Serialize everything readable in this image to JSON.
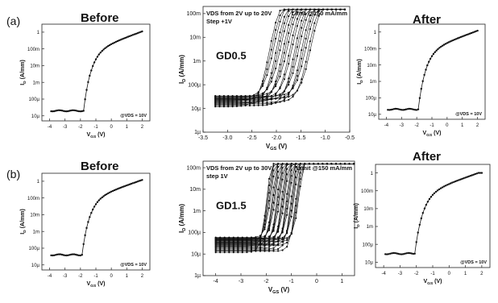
{
  "rows": [
    {
      "tag": "(a)",
      "before": "Before",
      "after": "After"
    },
    {
      "tag": "(b)",
      "before": "Before",
      "after": "After"
    }
  ],
  "chart_data": [
    {
      "id": "a-before",
      "type": "scatter",
      "yscale": "log",
      "xlim": [
        -4.5,
        2.5
      ],
      "ylim": [
        5e-06,
        3
      ],
      "xticks": [
        -4,
        -3,
        -2,
        -1,
        0,
        1,
        2
      ],
      "xtick_labels": [
        "-4",
        "-3",
        "-2",
        "-1",
        "0",
        "1",
        "2"
      ],
      "yticks": [
        1e-05,
        0.0001,
        0.001,
        0.01,
        0.1,
        1
      ],
      "ytick_labels": [
        "10µ",
        "100µ",
        "1m",
        "10m",
        "100m",
        "1"
      ],
      "xlabel": "VGS (V)",
      "ylabel": "ID (A/mm)",
      "annotation": "@VDS = 10V",
      "curve": {
        "vth": -1.8,
        "off": 2e-05,
        "on_max": 1.2
      }
    },
    {
      "id": "a-main",
      "type": "scatter",
      "yscale": "log",
      "xlim": [
        -3.5,
        -0.5
      ],
      "ylim": [
        1e-06,
        0.2
      ],
      "xticks": [
        -3.5,
        -3.0,
        -2.5,
        -2.0,
        -1.5,
        -1.0,
        -0.5
      ],
      "xtick_labels": [
        "-3.5",
        "-3.0",
        "-2.5",
        "-2.0",
        "-1.5",
        "-1.0",
        "-0.5"
      ],
      "yticks": [
        1e-06,
        1e-05,
        0.0001,
        0.001,
        0.01,
        0.1
      ],
      "ytick_labels": [
        "1µ",
        "10µ",
        "100µ",
        "1m",
        "10m",
        "100m"
      ],
      "xlabel": "VGS (V)",
      "ylabel": "ID (A/mm)",
      "annotations": [
        "VDS from 2V up to 20V",
        "Step +1V",
        "Limit @150 mA/mm"
      ],
      "label": "GD0.5",
      "family": {
        "count": 19,
        "vth_start": -2.15,
        "vth_end": -1.3,
        "off_low": 1.2e-05,
        "off_high": 3.5e-05,
        "limit": 0.15
      }
    },
    {
      "id": "a-after",
      "type": "scatter",
      "yscale": "log",
      "xlim": [
        -4.5,
        2.5
      ],
      "ylim": [
        5e-06,
        3
      ],
      "xticks": [
        -4,
        -3,
        -2,
        -1,
        0,
        1,
        2
      ],
      "xtick_labels": [
        "-4",
        "-3",
        "-2",
        "-1",
        "0",
        "1",
        "2"
      ],
      "yticks": [
        1e-05,
        0.0001,
        0.001,
        0.01,
        0.1,
        1
      ],
      "ytick_labels": [
        "10µ",
        "100µ",
        "1m",
        "10m",
        "100m",
        "1"
      ],
      "xlabel": "VGS (V)",
      "ylabel": "ID (A/mm)",
      "annotation": "@VDS = 10V",
      "curve": {
        "vth": -1.9,
        "off": 2e-05,
        "on_max": 1.2
      }
    },
    {
      "id": "b-before",
      "type": "scatter",
      "yscale": "log",
      "xlim": [
        -4.5,
        2.5
      ],
      "ylim": [
        5e-06,
        3
      ],
      "xticks": [
        -4,
        -3,
        -2,
        -1,
        0,
        1,
        2
      ],
      "xtick_labels": [
        "-4",
        "-3",
        "-2",
        "-1",
        "0",
        "1",
        "2"
      ],
      "yticks": [
        1e-05,
        0.0001,
        0.001,
        0.01,
        0.1,
        1
      ],
      "ytick_labels": [
        "10µ",
        "100µ",
        "1m",
        "10m",
        "100m",
        "1"
      ],
      "xlabel": "VGS (V)",
      "ylabel": "ID (A/mm)",
      "annotation": "@VDS = 10V",
      "curve": {
        "vth": -1.9,
        "off": 4e-05,
        "on_max": 1.2
      }
    },
    {
      "id": "b-main",
      "type": "scatter",
      "yscale": "log",
      "xlim": [
        -4.5,
        1.5
      ],
      "ylim": [
        1e-06,
        0.2
      ],
      "xticks": [
        -4,
        -3,
        -2,
        -1,
        0,
        1
      ],
      "xtick_labels": [
        "-4",
        "-3",
        "-2",
        "-1",
        "0",
        "1"
      ],
      "yticks": [
        1e-06,
        1e-05,
        0.0001,
        0.001,
        0.01,
        0.1
      ],
      "ytick_labels": [
        "1µ",
        "10µ",
        "100µ",
        "1m",
        "10m",
        "100m"
      ],
      "xlabel": "VGS (V)",
      "ylabel": "ID (A/mm)",
      "annotations": [
        "VDS from 2V up to 30V",
        "step 1V",
        "Limit @150 mA/mm"
      ],
      "label": "GD1.5",
      "family": {
        "count": 29,
        "vth_start": -2.0,
        "vth_end": -0.7,
        "off_low": 1.2e-05,
        "off_high": 6e-05,
        "limit": 0.15
      }
    },
    {
      "id": "b-after",
      "type": "scatter",
      "yscale": "log",
      "xlim": [
        -4.5,
        2.5
      ],
      "ylim": [
        5e-06,
        3
      ],
      "xticks": [
        -4,
        -3,
        -2,
        -1,
        0,
        1,
        2
      ],
      "xtick_labels": [
        "-4",
        "-3",
        "-2",
        "-1",
        "0",
        "1",
        "2"
      ],
      "yticks": [
        1e-05,
        0.0001,
        0.001,
        0.01,
        0.1,
        1
      ],
      "ytick_labels": [
        "10µ",
        "100µ",
        "1m",
        "10m",
        "100m",
        "1"
      ],
      "xlabel": "VGS (V)",
      "ylabel": "ID (A/mm)",
      "annotation": "@VDS = 10V",
      "curve": {
        "vth": -2.1,
        "off": 3e-05,
        "on_max": 1.0
      }
    }
  ]
}
